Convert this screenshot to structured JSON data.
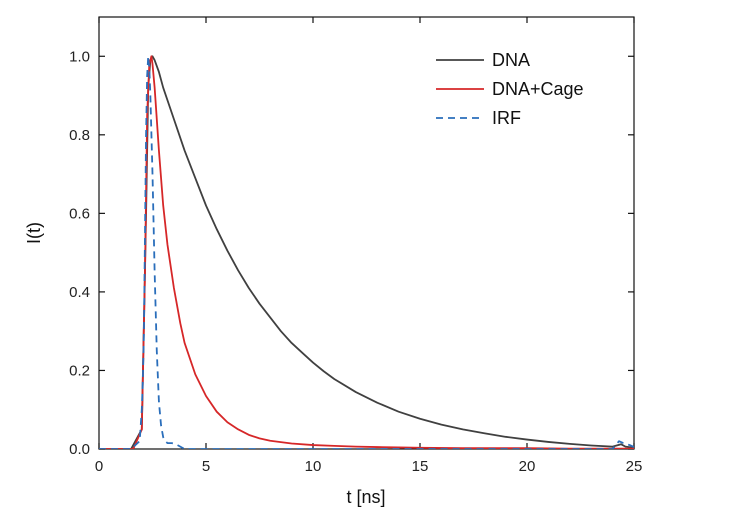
{
  "chart_data": {
    "type": "line",
    "title": "",
    "xlabel": "t [ns]",
    "ylabel": "I(t)",
    "xlim": [
      0,
      25
    ],
    "ylim": [
      0,
      1.1
    ],
    "x_ticks": [
      0,
      5,
      10,
      15,
      20,
      25
    ],
    "x_tick_labels": [
      "0",
      "5",
      "10",
      "15",
      "20",
      "25"
    ],
    "y_ticks": [
      0.0,
      0.2,
      0.4,
      0.6,
      0.8,
      1.0
    ],
    "y_tick_labels": [
      "0.0",
      "0.2",
      "0.4",
      "0.6",
      "0.8",
      "1.0"
    ],
    "grid": false,
    "legend_position": "top-right",
    "series": [
      {
        "name": "DNA",
        "color": "#404040",
        "dash": "solid",
        "x": [
          0,
          1.5,
          2.0,
          2.2,
          2.3,
          2.4,
          2.5,
          2.6,
          2.8,
          3.0,
          3.5,
          4.0,
          4.5,
          5.0,
          5.5,
          6.0,
          6.5,
          7.0,
          7.5,
          8.0,
          8.5,
          9.0,
          9.5,
          10.0,
          10.5,
          11.0,
          12.0,
          13.0,
          14.0,
          15.0,
          16.0,
          17.0,
          18.0,
          19.0,
          20.0,
          21.0,
          22.0,
          23.0,
          24.0,
          24.4,
          24.6,
          25.0
        ],
        "y": [
          0.0,
          0.0,
          0.05,
          0.6,
          0.92,
          0.99,
          1.0,
          0.99,
          0.96,
          0.92,
          0.84,
          0.76,
          0.69,
          0.62,
          0.56,
          0.505,
          0.455,
          0.41,
          0.37,
          0.335,
          0.3,
          0.27,
          0.245,
          0.22,
          0.198,
          0.178,
          0.145,
          0.118,
          0.095,
          0.077,
          0.062,
          0.05,
          0.04,
          0.031,
          0.024,
          0.018,
          0.013,
          0.009,
          0.006,
          0.012,
          0.006,
          0.003
        ]
      },
      {
        "name": "DNA+Cage",
        "color": "#d62728",
        "dash": "solid",
        "x": [
          0,
          1.6,
          2.0,
          2.15,
          2.25,
          2.35,
          2.45,
          2.5,
          2.6,
          2.7,
          2.8,
          3.0,
          3.2,
          3.5,
          3.8,
          4.0,
          4.5,
          5.0,
          5.5,
          6.0,
          6.5,
          7.0,
          7.5,
          8.0,
          9.0,
          10.0,
          11.0,
          12.0,
          13.0,
          14.0,
          15.0,
          17.0,
          20.0,
          22.0,
          24.0,
          25.0
        ],
        "y": [
          0.0,
          0.0,
          0.05,
          0.45,
          0.85,
          0.98,
          1.0,
          0.98,
          0.92,
          0.84,
          0.76,
          0.62,
          0.52,
          0.41,
          0.32,
          0.27,
          0.19,
          0.135,
          0.095,
          0.068,
          0.05,
          0.036,
          0.027,
          0.021,
          0.014,
          0.01,
          0.008,
          0.006,
          0.005,
          0.004,
          0.003,
          0.002,
          0.002,
          0.001,
          0.001,
          0.001
        ]
      },
      {
        "name": "IRF",
        "color": "#2a6ebb",
        "dash": "dashed",
        "x": [
          0,
          1.0,
          1.5,
          1.9,
          2.0,
          2.05,
          2.1,
          2.15,
          2.2,
          2.25,
          2.3,
          2.35,
          2.4,
          2.5,
          2.6,
          2.7,
          2.8,
          2.9,
          3.0,
          3.1,
          3.2,
          3.4,
          3.6,
          4.0,
          5.0,
          10.0,
          20.0,
          24.0,
          24.3,
          24.5,
          24.8,
          25.0
        ],
        "y": [
          0.0,
          0.0,
          0.0,
          0.02,
          0.1,
          0.18,
          0.3,
          0.55,
          0.8,
          0.95,
          1.0,
          0.97,
          0.9,
          0.7,
          0.45,
          0.25,
          0.12,
          0.06,
          0.03,
          0.02,
          0.015,
          0.015,
          0.012,
          0.0,
          0.0,
          0.0,
          0.0,
          0.0,
          0.02,
          0.015,
          0.01,
          0.005
        ]
      }
    ]
  }
}
